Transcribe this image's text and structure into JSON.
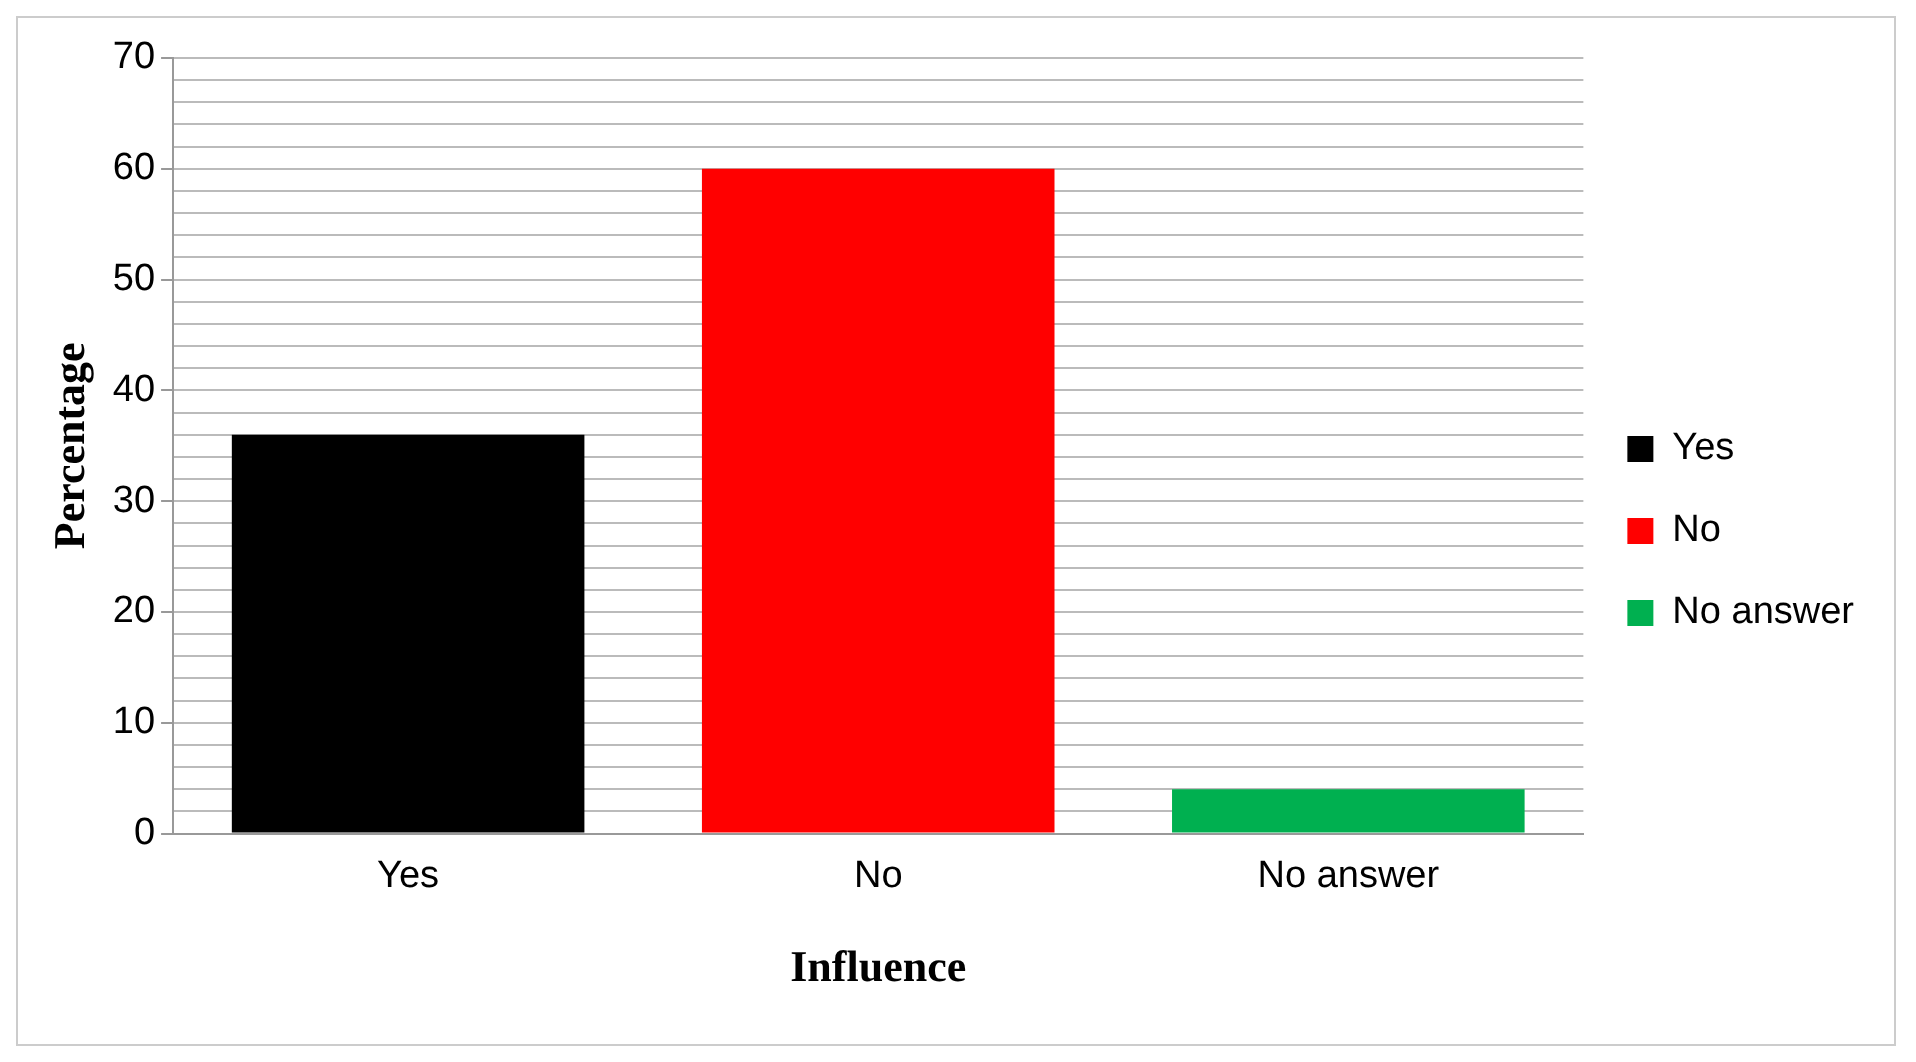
{
  "chart_data": {
    "type": "bar",
    "xlabel": "Influence",
    "ylabel": "Percentage",
    "categories": [
      "Yes",
      "No",
      "No answer"
    ],
    "series": [
      {
        "name": "Yes",
        "color": "#000000",
        "values": [
          36,
          null,
          null
        ]
      },
      {
        "name": "No",
        "color": "#ff0000",
        "values": [
          null,
          60,
          null
        ]
      },
      {
        "name": "No answer",
        "color": "#00b050",
        "values": [
          null,
          null,
          4
        ]
      }
    ],
    "ylim": [
      0,
      70
    ],
    "yticks": [
      0,
      {
        "value": 2,
        "label": null
      },
      {
        "value": 4,
        "label": null
      },
      {
        "value": 6,
        "label": null
      },
      {
        "value": 8,
        "label": null
      },
      10,
      {
        "value": 12,
        "label": null
      },
      {
        "value": 14,
        "label": null
      },
      {
        "value": 16,
        "label": null
      },
      {
        "value": 18,
        "label": null
      },
      20,
      {
        "value": 22,
        "label": null
      },
      {
        "value": 24,
        "label": null
      },
      {
        "value": 26,
        "label": null
      },
      {
        "value": 28,
        "label": null
      },
      30,
      {
        "value": 32,
        "label": null
      },
      {
        "value": 34,
        "label": null
      },
      {
        "value": 36,
        "label": null
      },
      {
        "value": 38,
        "label": null
      },
      40,
      {
        "value": 42,
        "label": null
      },
      {
        "value": 44,
        "label": null
      },
      {
        "value": 46,
        "label": null
      },
      {
        "value": 48,
        "label": null
      },
      50,
      {
        "value": 52,
        "label": null
      },
      {
        "value": 54,
        "label": null
      },
      {
        "value": 56,
        "label": null
      },
      {
        "value": 58,
        "label": null
      },
      60,
      {
        "value": 62,
        "label": null
      },
      {
        "value": 64,
        "label": null
      },
      {
        "value": 66,
        "label": null
      },
      {
        "value": 68,
        "label": null
      },
      70
    ],
    "grid": "y",
    "legend": "right"
  }
}
